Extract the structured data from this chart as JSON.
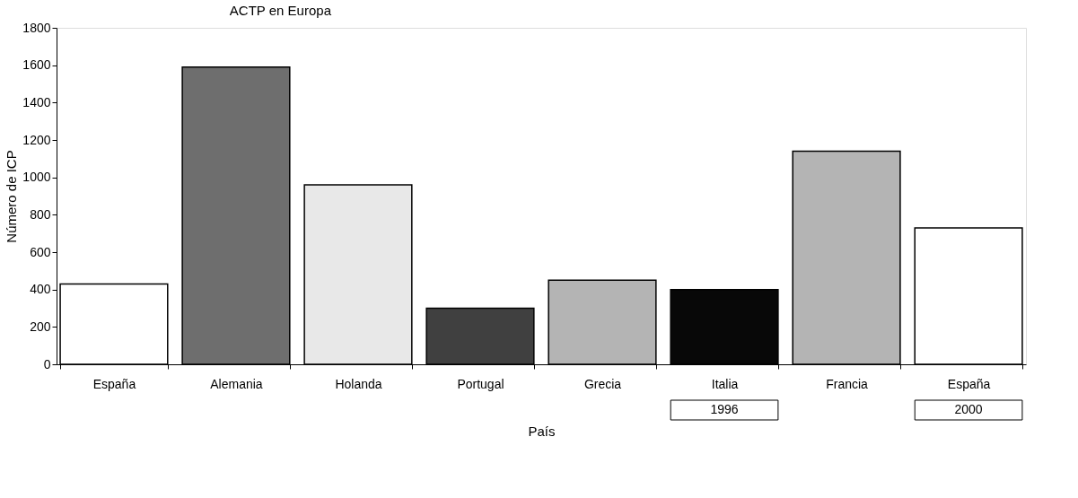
{
  "chart_data": {
    "type": "bar",
    "title": "ACTP en Europa",
    "xlabel": "País",
    "ylabel": "Número de ICP",
    "categories": [
      "España",
      "Alemania",
      "Holanda",
      "Portugal",
      "Grecia",
      "Italia",
      "Francia",
      "España"
    ],
    "values": [
      430,
      1590,
      960,
      300,
      450,
      400,
      1140,
      730
    ],
    "colors": [
      "#ffffff",
      "#6e6e6e",
      "#e8e8e8",
      "#404040",
      "#b4b4b4",
      "#080808",
      "#b4b4b4",
      "#ffffff"
    ],
    "ylim": [
      0,
      1800
    ],
    "yticks": [
      0,
      200,
      400,
      600,
      800,
      1000,
      1200,
      1400,
      1600,
      1800
    ],
    "grid": false,
    "annotations": [
      "1996",
      "2000"
    ]
  }
}
